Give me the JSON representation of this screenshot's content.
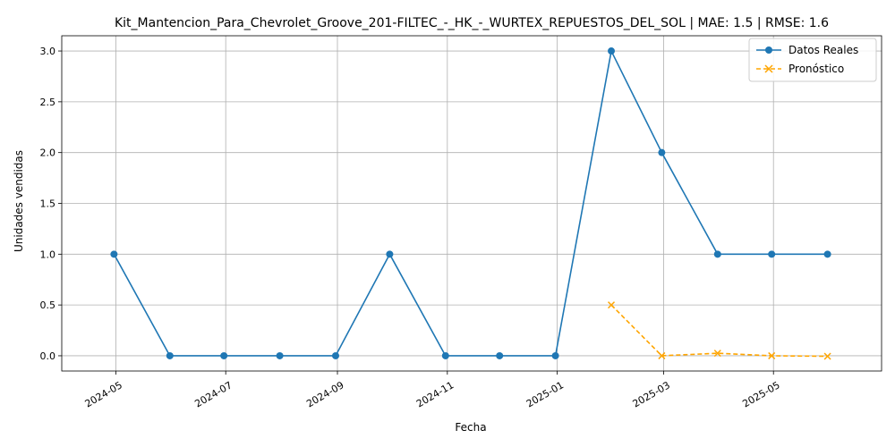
{
  "chart_data": {
    "type": "line",
    "title": "Kit_Mantencion_Para_Chevrolet_Groove_201-FILTEC_-_HK_-_WURTEX_REPUESTOS_DEL_SOL | MAE: 1.5 | RMSE: 1.6",
    "xlabel": "Fecha",
    "ylabel": "Unidades vendidas",
    "x_ticks": [
      "2024-05",
      "2024-07",
      "2024-09",
      "2024-11",
      "2025-01",
      "2025-03",
      "2025-05"
    ],
    "y_ticks": [
      "0.0",
      "0.5",
      "1.0",
      "1.5",
      "2.0",
      "2.5",
      "3.0"
    ],
    "ylim": [
      -0.15,
      3.15
    ],
    "xlim": [
      "2024-04-01",
      "2025-06-30"
    ],
    "grid": true,
    "legend_position": "top-right",
    "series": [
      {
        "name": "Datos Reales",
        "color": "#1f77b4",
        "style": "solid",
        "marker": "circle",
        "x": [
          "2024-04-30",
          "2024-05-31",
          "2024-06-30",
          "2024-07-31",
          "2024-08-31",
          "2024-09-30",
          "2024-10-31",
          "2024-11-30",
          "2024-12-31",
          "2025-01-31",
          "2025-02-28",
          "2025-03-31",
          "2025-04-30",
          "2025-05-31"
        ],
        "values": [
          1,
          0,
          0,
          0,
          0,
          1,
          0,
          0,
          0,
          3,
          2,
          1,
          1,
          1
        ]
      },
      {
        "name": "Pronóstico",
        "color": "#ffa500",
        "style": "dashed",
        "marker": "x",
        "x": [
          "2025-01-31",
          "2025-02-28",
          "2025-03-31",
          "2025-04-30",
          "2025-05-31"
        ],
        "values": [
          0.5,
          0.0,
          0.025,
          0.0,
          -0.005
        ]
      }
    ]
  }
}
